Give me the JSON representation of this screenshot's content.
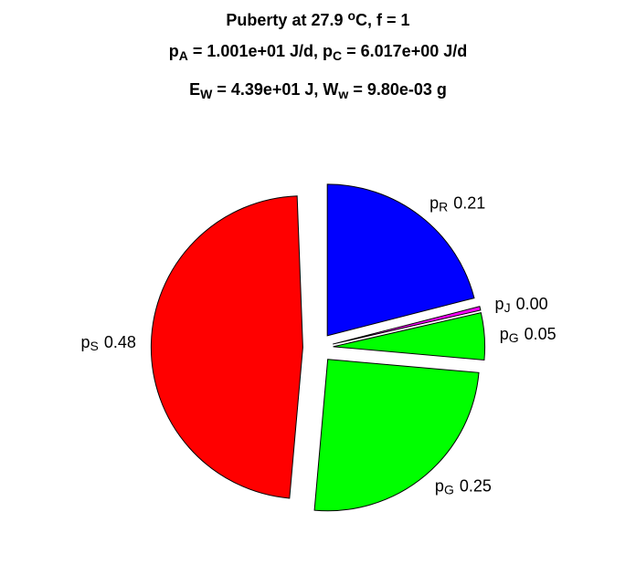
{
  "chart_data": {
    "type": "pie",
    "title": [
      [
        {
          "text": "Puberty at 27.9 "
        },
        {
          "sup": "o"
        },
        {
          "text": "C, f = 1"
        }
      ],
      [
        {
          "text": "p"
        },
        {
          "sub": "A"
        },
        {
          "text": " = 1.001e+01 J/d,  p"
        },
        {
          "sub": "C"
        },
        {
          "text": " = 6.017e+00 J/d"
        }
      ],
      [
        {
          "text": "E"
        },
        {
          "sub": "W"
        },
        {
          "text": " = 4.39e+01 J, W"
        },
        {
          "sub": "w"
        },
        {
          "text": " = 9.80e-03 g"
        }
      ]
    ],
    "categories": [
      "p",
      "p",
      "p",
      "p",
      "p"
    ],
    "category_subscripts": [
      "R",
      "J",
      "G",
      "G",
      "S"
    ],
    "values": [
      0.21,
      0.004,
      0.05,
      0.25,
      0.48
    ],
    "value_labels": [
      "0.21",
      "0.00",
      "0.05",
      "0.25",
      "0.48"
    ],
    "colors": [
      "#0000ff",
      "#ff00ff",
      "#00ff00",
      "#00ff00",
      "#ff0000"
    ],
    "explode": true
  }
}
